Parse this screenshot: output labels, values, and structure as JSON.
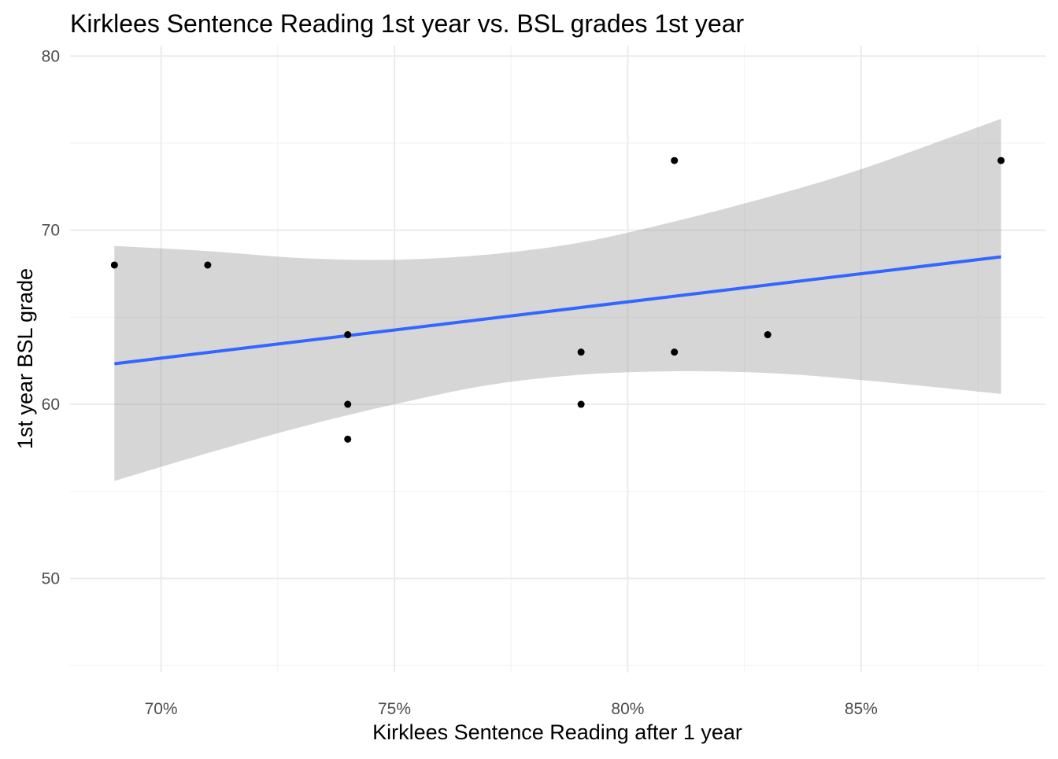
{
  "chart_data": {
    "type": "scatter",
    "title": "Kirklees Sentence Reading 1st year vs. BSL grades 1st year",
    "xlabel": "Kirklees Sentence Reading after 1 year",
    "ylabel": "1st year BSL grade",
    "x_format": "percent",
    "xlim": [
      0.6805,
      0.8895
    ],
    "ylim": [
      44.6,
      80.6
    ],
    "x_ticks": [
      0.7,
      0.75,
      0.8,
      0.85
    ],
    "x_tick_labels": [
      "70%",
      "75%",
      "80%",
      "85%"
    ],
    "y_ticks": [
      50,
      60,
      70,
      80
    ],
    "y_tick_labels": [
      "50",
      "60",
      "70",
      "80"
    ],
    "grid": true,
    "legend": "none",
    "points": [
      {
        "x": 0.69,
        "y": 68
      },
      {
        "x": 0.71,
        "y": 68
      },
      {
        "x": 0.74,
        "y": 64
      },
      {
        "x": 0.74,
        "y": 60
      },
      {
        "x": 0.74,
        "y": 58
      },
      {
        "x": 0.79,
        "y": 63
      },
      {
        "x": 0.79,
        "y": 60
      },
      {
        "x": 0.81,
        "y": 74
      },
      {
        "x": 0.81,
        "y": 63
      },
      {
        "x": 0.83,
        "y": 64
      },
      {
        "x": 0.88,
        "y": 74
      }
    ],
    "trend_line": {
      "type": "linear",
      "from": {
        "x": 0.69,
        "y": 62.33
      },
      "to": {
        "x": 0.88,
        "y": 68.47
      }
    },
    "confidence_band": [
      {
        "x": 0.69,
        "lower": 55.6,
        "upper": 69.1
      },
      {
        "x": 0.71,
        "lower": 57.2,
        "upper": 68.8
      },
      {
        "x": 0.73,
        "lower": 58.7,
        "upper": 68.4
      },
      {
        "x": 0.75,
        "lower": 60.0,
        "upper": 68.3
      },
      {
        "x": 0.77,
        "lower": 61.1,
        "upper": 68.6
      },
      {
        "x": 0.79,
        "lower": 61.7,
        "upper": 69.3
      },
      {
        "x": 0.81,
        "lower": 61.9,
        "upper": 70.5
      },
      {
        "x": 0.83,
        "lower": 61.8,
        "upper": 71.9
      },
      {
        "x": 0.85,
        "lower": 61.4,
        "upper": 73.5
      },
      {
        "x": 0.88,
        "lower": 60.6,
        "upper": 76.4
      }
    ],
    "colors": {
      "line": "#3366ff",
      "band": "#999999",
      "points": "#000000",
      "grid": "#ebebeb"
    }
  }
}
